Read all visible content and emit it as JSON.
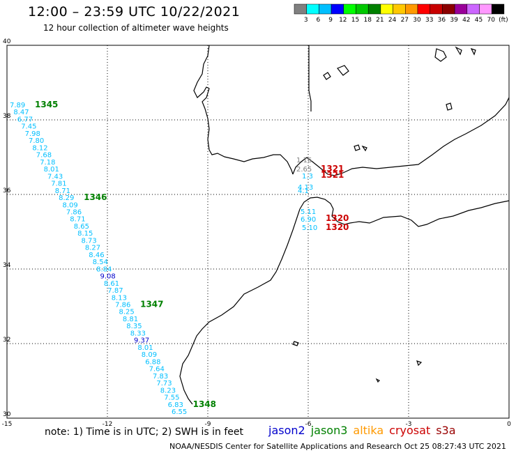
{
  "header": {
    "title": "12:00 – 23:59 UTC 10/22/2021",
    "subtitle": "12 hour collection of altimeter wave heights"
  },
  "colorbar": {
    "colors": [
      "#808080",
      "#00ffff",
      "#00bfff",
      "#0000ff",
      "#00ff00",
      "#00c800",
      "#008000",
      "#ffff00",
      "#ffc800",
      "#ff9900",
      "#ff0000",
      "#c80000",
      "#8b0000",
      "#990099",
      "#cc66ff",
      "#ff99ff",
      "#000000"
    ],
    "labels": [
      "3",
      "6",
      "9",
      "12",
      "15",
      "18",
      "21",
      "24",
      "27",
      "30",
      "33",
      "36",
      "39",
      "42",
      "45",
      "70",
      "(ft)"
    ]
  },
  "axes": {
    "lon_ticks": [
      "-15",
      "-12",
      "-9",
      "-6",
      "-3",
      "0"
    ],
    "lat_ticks": [
      "40",
      "38",
      "36",
      "34",
      "32",
      "30"
    ]
  },
  "footer": {
    "note": "note: 1) Time is in UTC; 2) SWH is in feet",
    "credit": "NOAA/NESDIS Center for Satellite Applications and Research     Oct 25 08:27:43 UTC 2021",
    "legend": [
      {
        "name": "jason2",
        "color": "#0000cc"
      },
      {
        "name": "jason3",
        "color": "#008000"
      },
      {
        "name": "altika",
        "color": "#ff9900"
      },
      {
        "name": "cryosat",
        "color": "#cc0000"
      },
      {
        "name": "s3a",
        "color": "#990000"
      }
    ]
  },
  "track_values": [
    "7.89",
    "8.47",
    "6.77",
    "7.45",
    "7.98",
    "7.80",
    "8.12",
    "7.68",
    "7.18",
    "8.01",
    "7.43",
    "7.81",
    "8.71",
    "8.29",
    "8.09",
    "7.86",
    "8.71",
    "8.65",
    "8.15",
    "8.73",
    "8.27",
    "8.46",
    "8.54",
    "8.84",
    "9.08",
    "8.61",
    "7.87",
    "8.13",
    "7.86",
    "8.25",
    "8.81",
    "8.35",
    "8.33",
    "9.37",
    "8.01",
    "8.09",
    "6.88",
    "7.64",
    "7.83",
    "7.73",
    "8.23",
    "7.55",
    "6.83",
    "6.55"
  ],
  "track_times": [
    {
      "label": "1345",
      "after": 0
    },
    {
      "label": "1346",
      "after": 13
    },
    {
      "label": "1347",
      "after": 28
    },
    {
      "label": "1348",
      "after": 42
    }
  ],
  "gibraltar": {
    "gray": [
      "1.16",
      "2.65"
    ],
    "cyan": [
      "1.3",
      "4.13",
      "4.1",
      "5.11",
      "6.90",
      "5.10"
    ],
    "times": [
      "1321",
      "1321",
      "1320",
      "1320"
    ]
  }
}
